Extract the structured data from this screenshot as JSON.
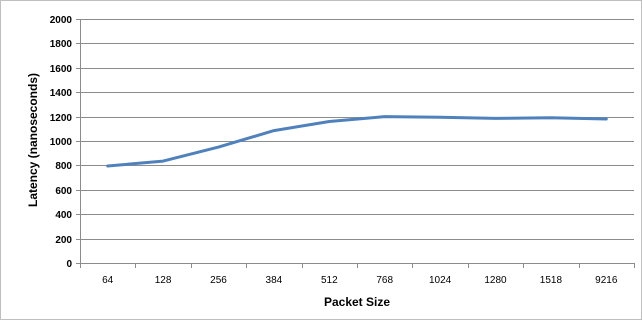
{
  "chart_data": {
    "type": "line",
    "title": "",
    "xlabel": "Packet Size",
    "ylabel": "Latency (nanoseconds)",
    "categories": [
      "64",
      "128",
      "256",
      "384",
      "512",
      "768",
      "1024",
      "1280",
      "1518",
      "9216"
    ],
    "series": [
      {
        "values": [
          795,
          835,
          950,
          1085,
          1160,
          1200,
          1195,
          1185,
          1190,
          1180
        ],
        "color": "#4f81bd"
      }
    ],
    "ylim": [
      0,
      2000
    ],
    "yticks": [
      0,
      200,
      400,
      600,
      800,
      1000,
      1200,
      1400,
      1600,
      1800,
      2000
    ],
    "grid": "horizontal",
    "legend": "none"
  }
}
